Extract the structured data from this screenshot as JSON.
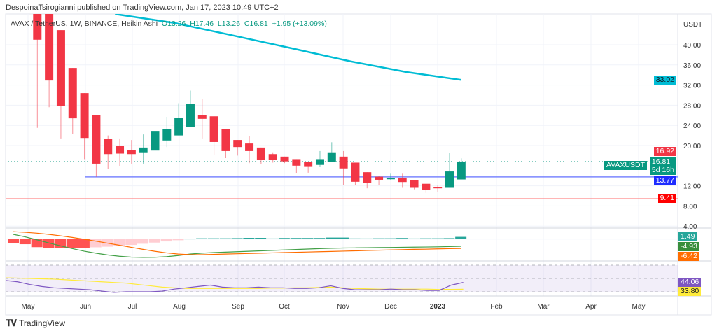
{
  "header": {
    "published": "DespoinaTsirogianni published on TradingView.com, Jan 17, 2023 10:49 UTC+2"
  },
  "legend": {
    "symbol": "AVAX / TetherUS, 1W, BINANCE, Heikin Ashi",
    "open": "O13.26",
    "high": "H17.46",
    "low": "L13.26",
    "close": "C16.81",
    "change": "+1.95 (+13.09%)"
  },
  "colors": {
    "up": "#089981",
    "down": "#f23645",
    "ma": "#00bcd4",
    "support": "#5b6cff",
    "stop": "#ff0000",
    "macd": "#43a047",
    "signal": "#ff6d00",
    "rsi": "#7e57c2",
    "rsi_ma": "#ffeb3b"
  },
  "price_axis": {
    "unit": "USDT",
    "ticks": [
      "40.00",
      "36.00",
      "32.00",
      "28.00",
      "24.00",
      "20.00",
      "12.00",
      "8.00",
      "4.00"
    ]
  },
  "price_labels": {
    "ma": "33.02",
    "high": "16.92",
    "symbol": "AVAXUSDT",
    "last": "16.81",
    "countdown": "5d 16h",
    "support": "13.77",
    "stop": "9.41"
  },
  "macd_labels": {
    "hist": "1.49",
    "macd": "-4.93",
    "signal": "-6.42"
  },
  "rsi_labels": {
    "rsi": "44.06",
    "ma": "33.80"
  },
  "time_axis": [
    "May",
    "Jun",
    "Jul",
    "Aug",
    "Sep",
    "Oct",
    "Nov",
    "Dec",
    "2023",
    "Feb",
    "Mar",
    "Apr",
    "May"
  ],
  "footer": {
    "brand": "TradingView"
  },
  "chart_data": {
    "type": "candlestick",
    "style": "Heikin Ashi",
    "interval": "1W",
    "yunit": "USDT",
    "ylim": [
      4,
      46
    ],
    "candles": [
      [
        50,
        55,
        23.5,
        41.0
      ],
      [
        48,
        50,
        27.6,
        32.9
      ],
      [
        42.9,
        42.9,
        21.4,
        27.9
      ],
      [
        35.4,
        35.4,
        22.3,
        25.4
      ],
      [
        30.4,
        30.4,
        17.3,
        21.5
      ],
      [
        26.0,
        26.0,
        13.8,
        16.4
      ],
      [
        21.25,
        22.0,
        15.3,
        18.3
      ],
      [
        19.9,
        21.4,
        15.9,
        18.4
      ],
      [
        19.1,
        21.1,
        16.4,
        18.3
      ],
      [
        18.65,
        22.2,
        16.4,
        19.6
      ],
      [
        19.0,
        26.4,
        19.0,
        22.9
      ],
      [
        21.0,
        25.7,
        19.7,
        23.2
      ],
      [
        22.0,
        28.4,
        22.0,
        25.5
      ],
      [
        23.75,
        30.9,
        23.75,
        28.3
      ],
      [
        26.1,
        29.3,
        21.4,
        25.3
      ],
      [
        25.8,
        25.8,
        18.2,
        20.7
      ],
      [
        23.3,
        23.3,
        17.5,
        18.9
      ],
      [
        21.1,
        21.1,
        18.0,
        19.7
      ],
      [
        20.4,
        21.9,
        16.5,
        18.9
      ],
      [
        19.6,
        19.6,
        16.35,
        17.1
      ],
      [
        18.3,
        18.65,
        16.6,
        17.1
      ],
      [
        17.8,
        17.8,
        16.5,
        16.85
      ],
      [
        17.3,
        17.3,
        14.55,
        16.0
      ],
      [
        16.7,
        16.7,
        14.6,
        15.75
      ],
      [
        16.15,
        18.9,
        15.7,
        17.3
      ],
      [
        16.8,
        20.65,
        16.8,
        18.65
      ],
      [
        17.8,
        18.9,
        12.1,
        15.45
      ],
      [
        16.6,
        16.6,
        12.1,
        12.8
      ],
      [
        14.7,
        14.7,
        11.5,
        12.5
      ],
      [
        13.8,
        14.0,
        12.1,
        13.2
      ],
      [
        13.3,
        14.4,
        13.15,
        13.6
      ],
      [
        13.5,
        14.4,
        11.6,
        12.75
      ],
      [
        13.15,
        13.15,
        11.3,
        11.6
      ],
      [
        12.4,
        12.4,
        10.6,
        11.25
      ],
      [
        11.8,
        12.2,
        10.8,
        11.5
      ],
      [
        11.6,
        18.55,
        11.6,
        14.85
      ],
      [
        13.26,
        17.46,
        13.26,
        16.81
      ]
    ],
    "moving_average": [
      [
        6.6,
        46.1
      ],
      [
        11.7,
        44.3
      ],
      [
        16.5,
        41.9
      ],
      [
        21.8,
        39.2
      ],
      [
        26.6,
        36.7
      ],
      [
        31.3,
        34.6
      ],
      [
        36,
        33.02
      ]
    ],
    "support_level": 13.77,
    "stop_level": 9.41,
    "macd": {
      "histogram": [
        -2.7,
        -3.5,
        -5.5,
        -6.3,
        -6.3,
        -6.3,
        -6.3,
        -5.6,
        -5.2,
        -4.8,
        -4.0,
        -3.2,
        -2.4,
        -1.6,
        -0.8,
        0.3,
        0.5,
        0.5,
        0.5,
        0.6,
        0.8,
        0.8,
        0.5,
        0.7,
        0.7,
        0.7,
        0.7,
        1.0,
        1.0,
        0.6,
        0.5,
        0.5,
        0.5,
        0.7,
        0.5,
        0.5,
        0.5,
        0.6,
        1.49
      ],
      "macd": [
        3.2,
        1.5,
        -0.5,
        -2.6,
        -4.6,
        -6.5,
        -8.2,
        -9.6,
        -10.8,
        -11.7,
        -12.3,
        -12.5,
        -12.4,
        -12.0,
        -11.2,
        -10.2,
        -9.6,
        -9.2,
        -8.9,
        -8.6,
        -8.3,
        -8.0,
        -7.7,
        -7.4,
        -7.1,
        -6.8,
        -6.5,
        -6.3,
        -6.1,
        -6.0,
        -5.9,
        -5.8,
        -5.7,
        -5.6,
        -5.5,
        -5.4,
        -5.3,
        -5.1,
        -4.93
      ],
      "signal": [
        5.0,
        4.6,
        4.0,
        3.2,
        2.2,
        1.1,
        -0.1,
        -1.4,
        -2.8,
        -4.2,
        -5.6,
        -7.0,
        -8.3,
        -9.4,
        -10.2,
        -10.6,
        -10.6,
        -10.4,
        -10.2,
        -10.0,
        -9.8,
        -9.6,
        -9.4,
        -9.2,
        -9.0,
        -8.8,
        -8.6,
        -8.4,
        -8.2,
        -8.0,
        -7.8,
        -7.6,
        -7.4,
        -7.2,
        -7.0,
        -6.9,
        -6.7,
        -6.55,
        -6.42
      ]
    },
    "rsi": {
      "bands": [
        70,
        50,
        30
      ],
      "rsi": [
        47,
        45,
        41,
        38,
        36,
        35,
        34,
        33,
        31,
        29,
        30,
        30,
        30,
        31,
        34,
        36,
        38,
        40,
        37,
        36,
        36,
        37,
        36,
        36,
        35,
        35,
        36,
        39,
        35,
        33,
        33,
        33,
        34,
        33,
        33,
        32,
        32,
        40,
        44.06
      ],
      "ma": [
        51,
        50.5,
        50,
        49.5,
        49,
        48,
        47,
        46,
        45,
        44,
        43,
        41,
        39,
        37,
        36,
        35,
        35,
        35,
        35,
        35,
        35,
        35,
        35.5,
        35.5,
        36,
        36,
        36.5,
        37,
        36,
        35,
        34.5,
        34,
        34,
        34,
        34,
        34,
        33.5,
        33.6,
        33.8
      ]
    }
  }
}
